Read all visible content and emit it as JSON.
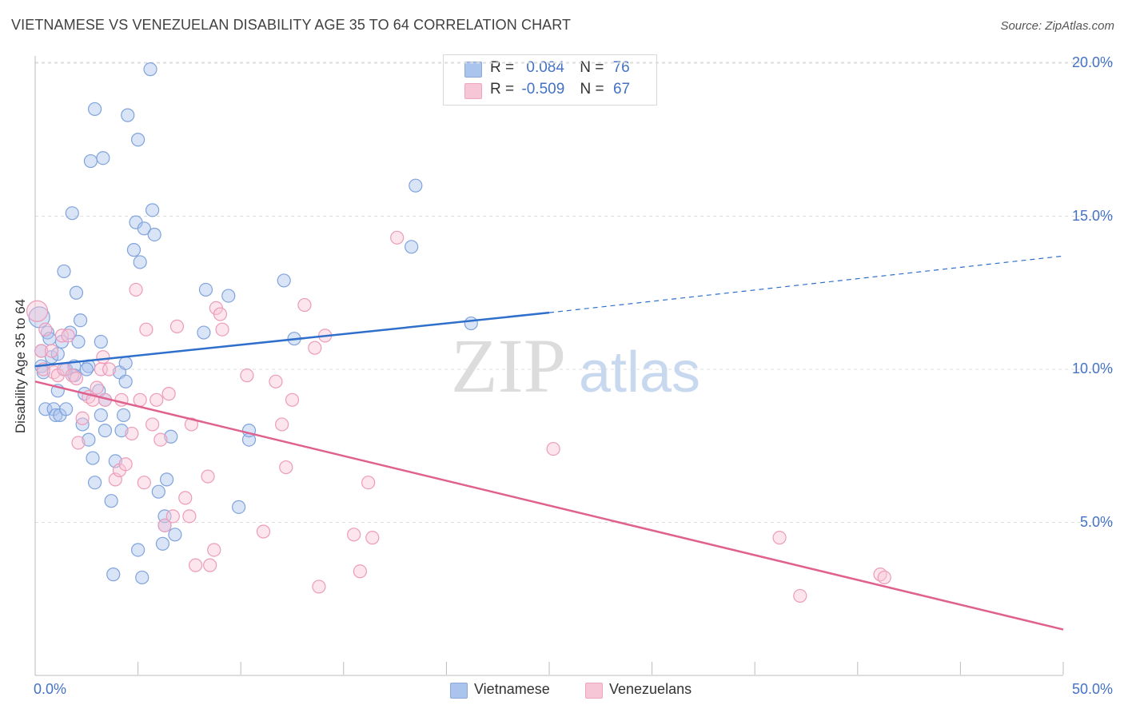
{
  "title": "VIETNAMESE VS VENEZUELAN DISABILITY AGE 35 TO 64 CORRELATION CHART",
  "source": "Source: ZipAtlas.com",
  "watermark": {
    "part1": "ZIP",
    "part2": "atlas"
  },
  "stats": [
    {
      "r_label": "R =",
      "r_value": "0.084",
      "n_label": "N =",
      "n_value": "76",
      "color": "#aac4ee"
    },
    {
      "r_label": "R =",
      "r_value": "-0.509",
      "n_label": "N =",
      "n_value": "67",
      "color": "#f6b8cc"
    }
  ],
  "legend": [
    {
      "label": "Vietnamese",
      "color": "#aac4ee"
    },
    {
      "label": "Venezuelans",
      "color": "#f6b8cc"
    }
  ],
  "chart_data": {
    "type": "scatter",
    "title": "VIETNAMESE VS VENEZUELAN DISABILITY AGE 35 TO 64 CORRELATION CHART",
    "xlabel": "",
    "ylabel": "Disability Age 35 to 64",
    "xlim": [
      0,
      50
    ],
    "ylim": [
      0,
      20.5
    ],
    "x_tick_labels": [
      "0.0%",
      "50.0%"
    ],
    "y_ticks": [
      5,
      10,
      15,
      20
    ],
    "y_tick_labels": [
      "5.0%",
      "10.0%",
      "15.0%",
      "20.0%"
    ],
    "grid": "horizontal dashed",
    "legend_position": "bottom-center",
    "series": [
      {
        "name": "Vietnamese",
        "color": "#8fb2e6",
        "line_color": "#2f6fcc",
        "trend": {
          "x": [
            0,
            25
          ],
          "y": [
            10.1,
            11.85
          ],
          "dashed_extension": {
            "x": [
              25,
              50
            ],
            "y": [
              11.85,
              13.7
            ]
          }
        },
        "points": [
          [
            0.2,
            11.7
          ],
          [
            0.3,
            10.6
          ],
          [
            0.3,
            10.1
          ],
          [
            0.4,
            9.9
          ],
          [
            0.5,
            8.7
          ],
          [
            0.6,
            11.2
          ],
          [
            0.7,
            11.0
          ],
          [
            0.8,
            10.4
          ],
          [
            0.9,
            8.7
          ],
          [
            1.0,
            8.5
          ],
          [
            1.1,
            9.3
          ],
          [
            1.1,
            10.5
          ],
          [
            1.2,
            8.5
          ],
          [
            1.3,
            10.9
          ],
          [
            1.4,
            13.2
          ],
          [
            1.5,
            10.0
          ],
          [
            1.5,
            8.7
          ],
          [
            1.7,
            11.2
          ],
          [
            1.8,
            15.1
          ],
          [
            1.9,
            10.1
          ],
          [
            1.9,
            9.8
          ],
          [
            2.0,
            12.5
          ],
          [
            2.1,
            10.9
          ],
          [
            2.2,
            11.6
          ],
          [
            2.3,
            8.2
          ],
          [
            2.4,
            9.2
          ],
          [
            2.6,
            10.1
          ],
          [
            2.6,
            7.7
          ],
          [
            2.7,
            16.8
          ],
          [
            2.8,
            7.1
          ],
          [
            2.9,
            6.3
          ],
          [
            2.9,
            18.5
          ],
          [
            3.1,
            9.3
          ],
          [
            3.2,
            10.9
          ],
          [
            3.2,
            8.5
          ],
          [
            3.3,
            16.9
          ],
          [
            3.4,
            9.0
          ],
          [
            3.4,
            8.0
          ],
          [
            3.7,
            5.7
          ],
          [
            3.8,
            3.3
          ],
          [
            3.9,
            7.0
          ],
          [
            4.1,
            9.9
          ],
          [
            4.2,
            8.0
          ],
          [
            4.3,
            8.5
          ],
          [
            4.4,
            9.6
          ],
          [
            4.4,
            10.2
          ],
          [
            4.5,
            18.3
          ],
          [
            4.8,
            13.9
          ],
          [
            4.9,
            14.8
          ],
          [
            5.0,
            4.1
          ],
          [
            5.0,
            17.5
          ],
          [
            5.1,
            13.5
          ],
          [
            5.2,
            3.2
          ],
          [
            5.3,
            14.6
          ],
          [
            5.6,
            19.8
          ],
          [
            5.7,
            15.2
          ],
          [
            5.8,
            14.4
          ],
          [
            6.0,
            6.0
          ],
          [
            6.2,
            4.3
          ],
          [
            6.3,
            4.9
          ],
          [
            6.3,
            5.2
          ],
          [
            6.4,
            6.4
          ],
          [
            6.6,
            7.8
          ],
          [
            6.8,
            4.6
          ],
          [
            8.2,
            11.2
          ],
          [
            8.3,
            12.6
          ],
          [
            9.4,
            12.4
          ],
          [
            9.9,
            5.5
          ],
          [
            10.4,
            7.7
          ],
          [
            10.4,
            8.0
          ],
          [
            12.1,
            12.9
          ],
          [
            12.6,
            11.0
          ],
          [
            18.3,
            14.0
          ],
          [
            18.5,
            16.0
          ],
          [
            21.2,
            11.5
          ],
          [
            2.5,
            10.0
          ]
        ]
      },
      {
        "name": "Venezuelans",
        "color": "#f3a6be",
        "line_color": "#e0608e",
        "trend": {
          "x": [
            0,
            50
          ],
          "y": [
            9.6,
            1.5
          ]
        },
        "points": [
          [
            0.1,
            11.9
          ],
          [
            0.3,
            10.6
          ],
          [
            0.4,
            10.0
          ],
          [
            0.5,
            11.3
          ],
          [
            0.8,
            10.6
          ],
          [
            0.9,
            9.9
          ],
          [
            1.1,
            9.8
          ],
          [
            1.3,
            11.1
          ],
          [
            1.4,
            10.0
          ],
          [
            1.6,
            11.1
          ],
          [
            1.8,
            9.8
          ],
          [
            2.0,
            9.7
          ],
          [
            2.1,
            7.6
          ],
          [
            2.3,
            8.4
          ],
          [
            2.6,
            9.1
          ],
          [
            2.8,
            9.0
          ],
          [
            3.0,
            9.4
          ],
          [
            3.2,
            10.0
          ],
          [
            3.3,
            10.4
          ],
          [
            3.4,
            9.0
          ],
          [
            3.6,
            10.0
          ],
          [
            3.9,
            6.4
          ],
          [
            4.1,
            6.7
          ],
          [
            4.2,
            9.0
          ],
          [
            4.4,
            6.9
          ],
          [
            4.7,
            7.9
          ],
          [
            4.9,
            12.6
          ],
          [
            5.1,
            9.0
          ],
          [
            5.3,
            6.3
          ],
          [
            5.4,
            11.3
          ],
          [
            5.7,
            8.2
          ],
          [
            5.9,
            9.0
          ],
          [
            6.1,
            7.7
          ],
          [
            6.3,
            4.9
          ],
          [
            6.5,
            9.2
          ],
          [
            6.7,
            5.2
          ],
          [
            6.9,
            11.4
          ],
          [
            7.3,
            5.8
          ],
          [
            7.5,
            5.2
          ],
          [
            7.6,
            8.2
          ],
          [
            7.8,
            3.6
          ],
          [
            8.4,
            6.5
          ],
          [
            8.5,
            3.6
          ],
          [
            8.7,
            4.1
          ],
          [
            8.8,
            12.0
          ],
          [
            9.0,
            11.8
          ],
          [
            9.1,
            11.3
          ],
          [
            10.3,
            9.8
          ],
          [
            11.1,
            4.7
          ],
          [
            11.7,
            9.6
          ],
          [
            12.0,
            8.2
          ],
          [
            12.2,
            6.8
          ],
          [
            12.5,
            9.0
          ],
          [
            13.1,
            12.1
          ],
          [
            13.6,
            10.7
          ],
          [
            13.8,
            2.9
          ],
          [
            14.1,
            11.1
          ],
          [
            15.5,
            4.6
          ],
          [
            15.8,
            3.4
          ],
          [
            16.2,
            6.3
          ],
          [
            16.4,
            4.5
          ],
          [
            17.6,
            14.3
          ],
          [
            25.2,
            7.4
          ],
          [
            36.2,
            4.5
          ],
          [
            37.2,
            2.6
          ],
          [
            41.1,
            3.3
          ],
          [
            41.3,
            3.2
          ]
        ]
      }
    ]
  }
}
